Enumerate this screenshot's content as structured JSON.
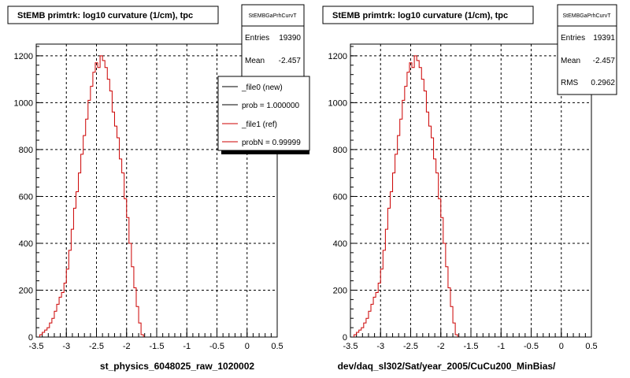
{
  "chart_data": [
    {
      "type": "histogram",
      "title": "StEMB primtrk: log10 curvature (1/cm), tpc",
      "stats": {
        "name": "StEMBGaPrhCurvT",
        "rows": [
          {
            "label": "Entries",
            "value": "19390"
          },
          {
            "label": "Mean",
            "value": "-2.457"
          }
        ]
      },
      "xlabel": "st_physics_6048025_raw_1020002",
      "xlim": [
        -3.5,
        0.5
      ],
      "ylim": [
        0,
        1250
      ],
      "xticks": [
        "-3.5",
        "-3",
        "-2.5",
        "-2",
        "-1.5",
        "-1",
        "-0.5",
        "0",
        "0.5"
      ],
      "yticks": [
        "0",
        "200",
        "400",
        "600",
        "800",
        "1000",
        "1200"
      ],
      "grid": true,
      "legend": [
        {
          "text": "_file0 (new)",
          "color": "#000000"
        },
        {
          "text": "prob = 1.000000",
          "color": "#000000"
        },
        {
          "text": "_file1 (ref)",
          "color": "#cc0000"
        },
        {
          "text": "probN = 0.99999",
          "color": "#cc0000"
        }
      ],
      "bin_width": 0.04,
      "x_start": -3.44,
      "values": [
        10,
        20,
        30,
        40,
        60,
        80,
        110,
        140,
        170,
        190,
        230,
        290,
        370,
        460,
        550,
        620,
        700,
        780,
        860,
        930,
        1010,
        1070,
        1130,
        1170,
        1150,
        1200,
        1180,
        1150,
        1100,
        1050,
        960,
        900,
        850,
        760,
        700,
        590,
        510,
        400,
        300,
        210,
        130,
        60,
        10
      ]
    },
    {
      "type": "histogram",
      "title": "StEMB primtrk: log10 curvature (1/cm), tpc",
      "stats": {
        "name": "StEMBGaPrhCurvT",
        "rows": [
          {
            "label": "Entries",
            "value": "19391"
          },
          {
            "label": "Mean",
            "value": "-2.457"
          },
          {
            "label": "RMS",
            "value": "0.2962"
          }
        ]
      },
      "xlabel": "dev/daq_sl302/Sat/year_2005/CuCu200_MinBias/",
      "xlim": [
        -3.5,
        0.5
      ],
      "ylim": [
        0,
        1250
      ],
      "xticks": [
        "-3.5",
        "-3",
        "-2.5",
        "-2",
        "-1.5",
        "-1",
        "-0.5",
        "0",
        "0.5"
      ],
      "yticks": [
        "0",
        "200",
        "400",
        "600",
        "800",
        "1000",
        "1200"
      ],
      "grid": true,
      "bin_width": 0.04,
      "x_start": -3.44,
      "values": [
        10,
        20,
        30,
        40,
        60,
        80,
        110,
        140,
        170,
        190,
        230,
        290,
        370,
        460,
        550,
        620,
        700,
        780,
        860,
        930,
        1010,
        1070,
        1130,
        1170,
        1150,
        1200,
        1180,
        1150,
        1100,
        1050,
        960,
        900,
        850,
        760,
        700,
        590,
        510,
        400,
        300,
        210,
        130,
        60,
        10
      ]
    }
  ]
}
